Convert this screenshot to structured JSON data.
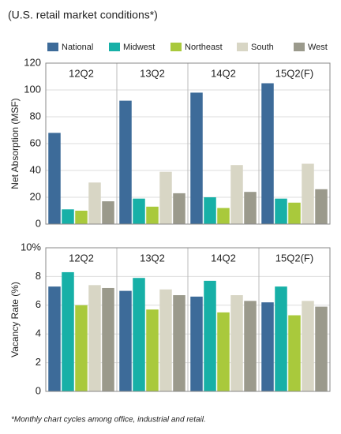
{
  "chart_data": [
    {
      "type": "bar",
      "title": "(U.S. retail market conditions*)",
      "footnote": "*Monthly chart cycles among office, industrial and retail.",
      "y_label": "Net Absorption (MSF)",
      "categories": [
        "12Q2",
        "13Q2",
        "14Q2",
        "15Q2(F)"
      ],
      "series": [
        {
          "name": "National",
          "color": "#3d6b99",
          "values": [
            68,
            92,
            98,
            105
          ]
        },
        {
          "name": "Midwest",
          "color": "#17b0a7",
          "values": [
            11,
            19,
            20,
            19
          ]
        },
        {
          "name": "Northeast",
          "color": "#a9c93c",
          "values": [
            10,
            13,
            12,
            16
          ]
        },
        {
          "name": "South",
          "color": "#d8d6c5",
          "values": [
            31,
            39,
            44,
            45
          ]
        },
        {
          "name": "West",
          "color": "#9b9a8c",
          "values": [
            17,
            23,
            24,
            26
          ]
        }
      ],
      "ylim": [
        0,
        120
      ],
      "yticks": [
        0,
        20,
        40,
        60,
        80,
        100,
        120
      ],
      "grid": true
    },
    {
      "type": "bar",
      "y_label": "Vacancy Rate (%)",
      "categories": [
        "12Q2",
        "13Q2",
        "14Q2",
        "15Q2(F)"
      ],
      "series": [
        {
          "color": "#3d6b99",
          "values": [
            7.3,
            7.0,
            6.6,
            6.2
          ]
        },
        {
          "color": "#17b0a7",
          "values": [
            8.3,
            7.9,
            7.7,
            7.3
          ]
        },
        {
          "color": "#a9c93c",
          "values": [
            6.0,
            5.7,
            5.5,
            5.3
          ]
        },
        {
          "color": "#d8d6c5",
          "values": [
            7.4,
            7.1,
            6.7,
            6.3
          ]
        },
        {
          "color": "#9b9a8c",
          "values": [
            7.2,
            6.7,
            6.3,
            5.9
          ]
        }
      ],
      "ylim": [
        0,
        10
      ],
      "yticks": [
        0,
        2,
        4,
        6,
        8,
        {
          "value": 10,
          "label": "10%"
        }
      ],
      "grid": true
    }
  ]
}
